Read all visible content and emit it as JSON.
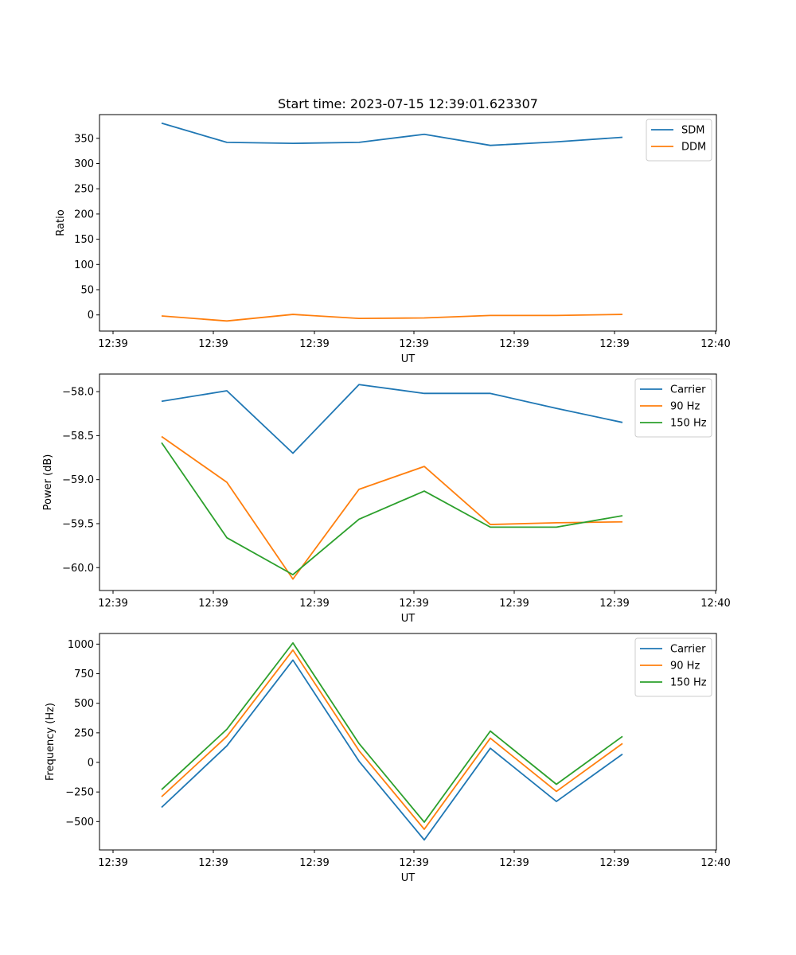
{
  "chart_data": [
    {
      "type": "line",
      "title": "Start time: 2023-07-15 12:39:01.623307",
      "xlabel": "UT",
      "ylabel": "Ratio",
      "x_ticks": [
        "12:39",
        "12:39",
        "12:39",
        "12:39",
        "12:39",
        "12:39",
        "12:40"
      ],
      "ylim": [
        -32,
        397
      ],
      "y_ticks": [
        0,
        50,
        100,
        150,
        200,
        250,
        300,
        350
      ],
      "grid": false,
      "legend": "top-right",
      "series": [
        {
          "name": "SDM",
          "color": "#1f77b4",
          "values": [
            380,
            342,
            340,
            342,
            358,
            336,
            343,
            352
          ]
        },
        {
          "name": "DDM",
          "color": "#ff7f0e",
          "values": [
            -2,
            -12,
            1,
            -7,
            -6,
            -1,
            -1,
            1
          ]
        }
      ]
    },
    {
      "type": "line",
      "title": "",
      "xlabel": "UT",
      "ylabel": "Power (dB)",
      "x_ticks": [
        "12:39",
        "12:39",
        "12:39",
        "12:39",
        "12:39",
        "12:39",
        "12:40"
      ],
      "ylim": [
        -60.26,
        -57.8
      ],
      "y_ticks": [
        -60.0,
        -59.5,
        -59.0,
        -58.5,
        -58.0
      ],
      "grid": false,
      "legend": "top-right",
      "series": [
        {
          "name": "Carrier",
          "color": "#1f77b4",
          "values": [
            -58.11,
            -57.99,
            -58.7,
            -57.92,
            -58.02,
            -58.02,
            -58.19,
            -58.35
          ]
        },
        {
          "name": "90 Hz",
          "color": "#ff7f0e",
          "values": [
            -58.51,
            -59.03,
            -60.13,
            -59.11,
            -58.85,
            -59.51,
            -59.49,
            -59.48
          ]
        },
        {
          "name": "150 Hz",
          "color": "#2ca02c",
          "values": [
            -58.58,
            -59.66,
            -60.08,
            -59.45,
            -59.13,
            -59.54,
            -59.54,
            -59.41
          ]
        }
      ]
    },
    {
      "type": "line",
      "title": "",
      "xlabel": "UT",
      "ylabel": "Frequency (Hz)",
      "x_ticks": [
        "12:39",
        "12:39",
        "12:39",
        "12:39",
        "12:39",
        "12:39",
        "12:40"
      ],
      "ylim": [
        -740,
        1090
      ],
      "y_ticks": [
        -500,
        -250,
        0,
        250,
        500,
        750,
        1000
      ],
      "grid": false,
      "legend": "top-right",
      "series": [
        {
          "name": "Carrier",
          "color": "#1f77b4",
          "values": [
            -380,
            140,
            865,
            10,
            -655,
            120,
            -330,
            70
          ]
        },
        {
          "name": "90 Hz",
          "color": "#ff7f0e",
          "values": [
            -290,
            220,
            950,
            100,
            -565,
            205,
            -245,
            160
          ]
        },
        {
          "name": "150 Hz",
          "color": "#2ca02c",
          "values": [
            -230,
            280,
            1010,
            160,
            -505,
            265,
            -185,
            220
          ]
        }
      ]
    }
  ]
}
